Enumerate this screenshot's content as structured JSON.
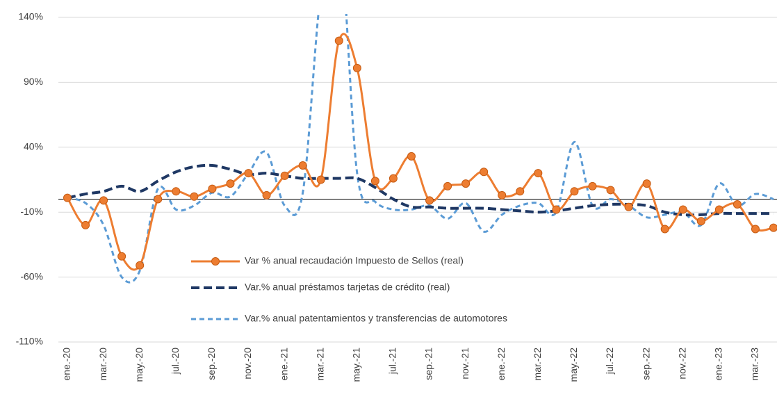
{
  "chart_data": {
    "type": "line",
    "categories": [
      "ene.-20",
      null,
      "mar.-20",
      null,
      "may.-20",
      null,
      "jul.-20",
      null,
      "sep.-20",
      null,
      "nov.-20",
      null,
      "ene.-21",
      null,
      "mar.-21",
      null,
      "may.-21",
      null,
      "jul.-21",
      null,
      "sep.-21",
      null,
      "nov.-21",
      null,
      "ene.-22",
      null,
      "mar.-22",
      null,
      "may.-22",
      null,
      "jul.-22",
      null,
      "sep.-22",
      null,
      "nov.-22",
      null,
      "ene.-23",
      null,
      "mar.-23",
      null
    ],
    "series": [
      {
        "name": "Var % anual recaudación Impuesto de Sellos (real)",
        "color": "#ed7d31",
        "style": "solid",
        "markers": true,
        "values": [
          1,
          -20,
          -1,
          -44,
          -51,
          0,
          6,
          2,
          8,
          12,
          20,
          3,
          18,
          26,
          15,
          122,
          101,
          14,
          16,
          33,
          -1,
          10,
          12,
          21,
          3,
          6,
          20,
          -8,
          6,
          10,
          7,
          -6,
          12,
          -23,
          -8,
          -17,
          -8,
          -4,
          -23,
          -22
        ]
      },
      {
        "name": "Var.% anual préstamos tarjetas de crédito (real)",
        "color": "#1f3864",
        "style": "dashed",
        "markers": false,
        "values": [
          1,
          4,
          6,
          10,
          6,
          14,
          21,
          25,
          26,
          23,
          19,
          20,
          18,
          16,
          16,
          16,
          16,
          9,
          0,
          -6,
          -6,
          -7,
          -7,
          -7,
          -8,
          -9,
          -10,
          -9,
          -7,
          -5,
          -4,
          -4,
          -5,
          -10,
          -12,
          -12,
          -11,
          -11,
          -11,
          -11
        ]
      },
      {
        "name": "Var.% anual patentamientos y transferencias de automotores",
        "color": "#5b9bd5",
        "style": "dashed",
        "markers": false,
        "values": [
          1,
          -3,
          -20,
          -60,
          -55,
          8,
          -8,
          -5,
          5,
          2,
          20,
          36,
          -5,
          5,
          160,
          210,
          20,
          -2,
          -8,
          -8,
          -5,
          -15,
          -3,
          -25,
          -12,
          -5,
          -3,
          -10,
          44,
          -5,
          0,
          -5,
          -14,
          -12,
          -10,
          -20,
          12,
          -5,
          4,
          0
        ]
      }
    ],
    "ylim": [
      -110,
      140
    ],
    "yticks": [
      {
        "value": -110,
        "label": "-110%"
      },
      {
        "value": -60,
        "label": "-60%"
      },
      {
        "value": -10,
        "label": "-10%"
      },
      {
        "value": 40,
        "label": "40%"
      },
      {
        "value": 90,
        "label": "90%"
      },
      {
        "value": 140,
        "label": "140%"
      }
    ],
    "grid": true,
    "zero_line": true,
    "legend": "lower center"
  }
}
